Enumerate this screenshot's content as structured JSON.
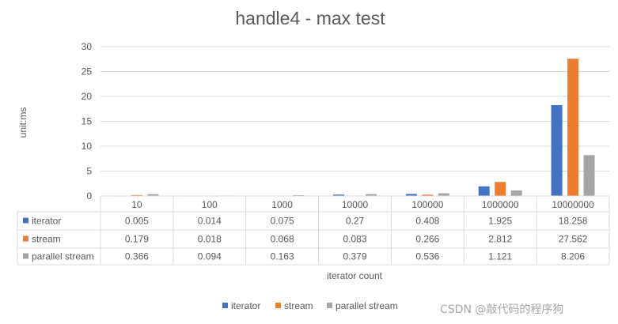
{
  "chart_data": {
    "type": "bar",
    "title": "handle4 - max test",
    "ylabel": "unit:ms",
    "xlabel": "iterator count",
    "ylim": [
      0,
      30
    ],
    "yticks": [
      0,
      5,
      10,
      15,
      20,
      25,
      30
    ],
    "grid": true,
    "legend_position": "bottom",
    "categories": [
      "10",
      "100",
      "1000",
      "10000",
      "100000",
      "1000000",
      "10000000"
    ],
    "series": [
      {
        "name": "iterator",
        "color": "#4472c4",
        "values": [
          0.005,
          0.014,
          0.075,
          0.27,
          0.408,
          1.925,
          18.258
        ]
      },
      {
        "name": "stream",
        "color": "#ed7d31",
        "values": [
          0.179,
          0.018,
          0.068,
          0.083,
          0.266,
          2.812,
          27.562
        ]
      },
      {
        "name": "parallel stream",
        "color": "#a5a5a5",
        "values": [
          0.366,
          0.094,
          0.163,
          0.379,
          0.536,
          1.121,
          8.206
        ]
      }
    ],
    "data_table_values": [
      [
        "0.005",
        "0.014",
        "0.075",
        "0.27",
        "0.408",
        "1.925",
        "18.258"
      ],
      [
        "0.179",
        "0.018",
        "0.068",
        "0.083",
        "0.266",
        "2.812",
        "27.562"
      ],
      [
        "0.366",
        "0.094",
        "0.163",
        "0.379",
        "0.536",
        "1.121",
        "8.206"
      ]
    ]
  },
  "watermark": "CSDN @敲代码的程序狗"
}
